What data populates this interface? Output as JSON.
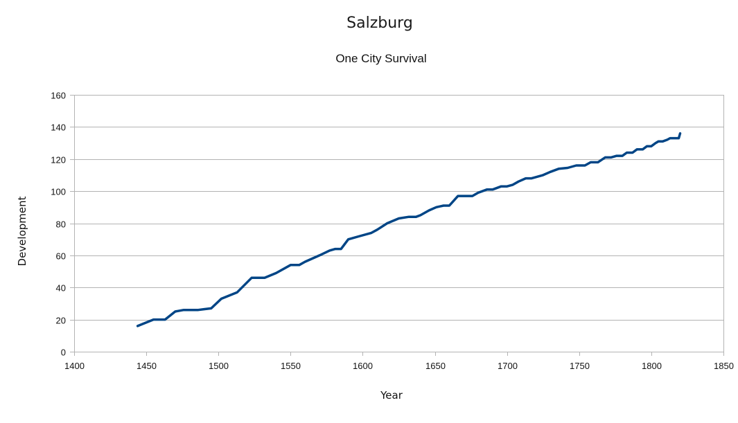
{
  "chart_data": {
    "type": "line",
    "title": "Salzburg",
    "subtitle": "One City Survival",
    "xlabel": "Year",
    "ylabel": "Development",
    "xlim": [
      1400,
      1850
    ],
    "ylim": [
      0,
      160
    ],
    "xticks": [
      1400,
      1450,
      1500,
      1550,
      1600,
      1650,
      1700,
      1750,
      1800,
      1850
    ],
    "yticks": [
      0,
      20,
      40,
      60,
      80,
      100,
      120,
      140,
      160
    ],
    "grid": true,
    "legend": "none",
    "series_color": "#004586",
    "series": [
      {
        "name": "Development",
        "x": [
          1444,
          1455,
          1463,
          1470,
          1476,
          1486,
          1490,
          1495,
          1502,
          1513,
          1523,
          1532,
          1540,
          1550,
          1556,
          1560,
          1570,
          1577,
          1581,
          1585,
          1590,
          1598,
          1606,
          1610,
          1617,
          1625,
          1632,
          1637,
          1640,
          1646,
          1651,
          1656,
          1660,
          1666,
          1676,
          1680,
          1686,
          1690,
          1696,
          1700,
          1704,
          1708,
          1713,
          1717,
          1725,
          1730,
          1736,
          1742,
          1748,
          1754,
          1758,
          1763,
          1768,
          1772,
          1776,
          1780,
          1783,
          1787,
          1790,
          1794,
          1797,
          1800,
          1803,
          1805,
          1808,
          1811,
          1813,
          1815,
          1818,
          1819,
          1820
        ],
        "values": [
          16,
          20,
          20,
          25,
          26,
          26,
          26.5,
          27,
          33,
          37,
          46,
          46,
          49,
          54,
          54,
          56,
          60,
          63,
          64,
          64,
          70,
          72,
          74,
          76,
          80,
          83,
          84,
          84,
          85,
          88,
          90,
          91,
          91,
          97,
          97,
          99,
          101,
          101,
          103,
          103,
          104,
          106,
          108,
          108,
          110,
          112,
          114,
          114.5,
          116,
          116,
          118,
          118,
          121,
          121,
          122,
          122,
          124,
          124,
          126,
          126,
          128,
          128,
          130,
          131,
          131,
          132,
          133,
          133,
          133,
          133,
          136
        ]
      }
    ]
  }
}
